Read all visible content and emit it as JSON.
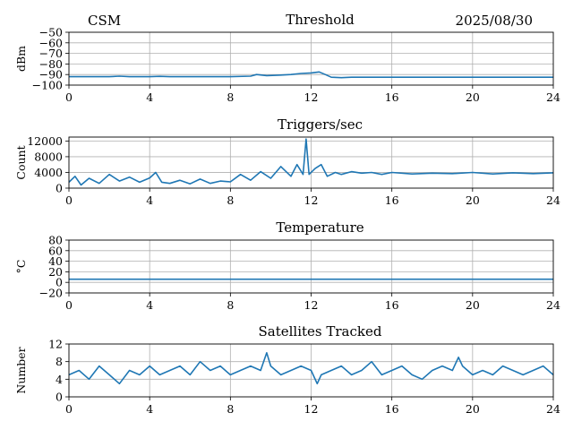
{
  "header": {
    "left_label": "CSM",
    "date": "2025/08/30"
  },
  "chart_data": [
    {
      "type": "line",
      "title": "Threshold",
      "ylabel": "dBm",
      "xlabel": "",
      "xlim": [
        0,
        24
      ],
      "ylim": [
        -100,
        -50
      ],
      "xticks": [
        "0",
        "4",
        "8",
        "12",
        "16",
        "20",
        "24"
      ],
      "yticks": [
        "−50",
        "−60",
        "−70",
        "−80",
        "−90",
        "−100"
      ],
      "grid": true,
      "color": "#1f77b4",
      "series": [
        {
          "x": [
            0,
            1,
            2,
            2.5,
            3,
            4,
            4.5,
            5,
            6,
            7,
            8,
            9,
            9.3,
            9.8,
            10.5,
            11,
            11.5,
            12,
            12.4,
            12.7,
            13,
            13.5,
            14,
            16,
            20,
            24
          ],
          "values": [
            -92,
            -92,
            -92,
            -91.5,
            -92,
            -92,
            -91.7,
            -92,
            -92,
            -92,
            -92,
            -91.5,
            -90,
            -91,
            -90.5,
            -90,
            -89,
            -88.5,
            -87.5,
            -90,
            -92.5,
            -93,
            -92.5,
            -92.5,
            -92.5,
            -92.5
          ]
        }
      ]
    },
    {
      "type": "line",
      "title": "Triggers/sec",
      "ylabel": "Count",
      "xlabel": "",
      "xlim": [
        0,
        24
      ],
      "ylim": [
        0,
        13000
      ],
      "xticks": [
        "0",
        "4",
        "8",
        "12",
        "16",
        "20",
        "24"
      ],
      "yticks": [
        "0",
        "4000",
        "8000",
        "12000"
      ],
      "grid": true,
      "color": "#1f77b4",
      "series": [
        {
          "x": [
            0,
            0.3,
            0.6,
            1,
            1.5,
            2,
            2.5,
            3,
            3.5,
            4,
            4.3,
            4.6,
            5,
            5.5,
            6,
            6.5,
            7,
            7.5,
            8,
            8.5,
            9,
            9.5,
            10,
            10.5,
            11,
            11.3,
            11.6,
            11.75,
            11.9,
            12.2,
            12.5,
            12.8,
            13.2,
            13.5,
            14,
            14.5,
            15,
            15.5,
            16,
            17,
            18,
            19,
            20,
            21,
            22,
            23,
            24
          ],
          "values": [
            1500,
            3000,
            800,
            2500,
            1200,
            3500,
            1800,
            2800,
            1500,
            2600,
            4000,
            1500,
            1200,
            2000,
            1100,
            2300,
            1200,
            1800,
            1600,
            3500,
            2000,
            4200,
            2500,
            5500,
            3000,
            6000,
            3500,
            12500,
            3500,
            5000,
            6000,
            3000,
            4000,
            3500,
            4200,
            3800,
            4000,
            3500,
            4000,
            3600,
            3800,
            3700,
            4000,
            3600,
            3900,
            3700,
            3900
          ]
        }
      ]
    },
    {
      "type": "line",
      "title": "Temperature",
      "ylabel": "°C",
      "xlabel": "",
      "xlim": [
        0,
        24
      ],
      "ylim": [
        -20,
        80
      ],
      "xticks": [
        "0",
        "4",
        "8",
        "12",
        "16",
        "20",
        "24"
      ],
      "yticks": [
        "−20",
        "0",
        "20",
        "40",
        "60",
        "80"
      ],
      "grid": true,
      "color": "#1f77b4",
      "series": [
        {
          "x": [
            0,
            24
          ],
          "values": [
            6,
            6
          ]
        }
      ]
    },
    {
      "type": "line",
      "title": "Satellites Tracked",
      "ylabel": "Number",
      "xlabel": "",
      "xlim": [
        0,
        24
      ],
      "ylim": [
        0,
        12
      ],
      "xticks": [
        "0",
        "4",
        "8",
        "12",
        "16",
        "20",
        "24"
      ],
      "yticks": [
        "0",
        "4",
        "8",
        "12"
      ],
      "grid": true,
      "color": "#1f77b4",
      "series": [
        {
          "x": [
            0,
            0.5,
            1,
            1.5,
            2,
            2.5,
            3,
            3.5,
            4,
            4.5,
            5,
            5.5,
            6,
            6.5,
            7,
            7.5,
            8,
            8.5,
            9,
            9.5,
            9.8,
            10,
            10.5,
            11,
            11.5,
            12,
            12.3,
            12.5,
            13,
            13.5,
            14,
            14.5,
            15,
            15.5,
            16,
            16.5,
            17,
            17.5,
            18,
            18.5,
            19,
            19.3,
            19.5,
            20,
            20.5,
            21,
            21.5,
            22,
            22.5,
            23,
            23.5,
            24
          ],
          "values": [
            5,
            6,
            4,
            7,
            5,
            3,
            6,
            5,
            7,
            5,
            6,
            7,
            5,
            8,
            6,
            7,
            5,
            6,
            7,
            6,
            10,
            7,
            5,
            6,
            7,
            6,
            3,
            5,
            6,
            7,
            5,
            6,
            8,
            5,
            6,
            7,
            5,
            4,
            6,
            7,
            6,
            9,
            7,
            5,
            6,
            5,
            7,
            6,
            5,
            6,
            7,
            5
          ]
        }
      ]
    }
  ]
}
